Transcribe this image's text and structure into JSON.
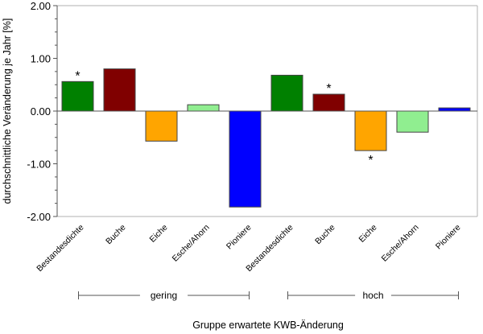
{
  "chart_data": {
    "type": "bar",
    "title": "",
    "xlabel": "Gruppe erwartete KWB-Änderung",
    "ylabel": "durchschnittliche Veränderung je Jahr [%]",
    "ylim": [
      -2.0,
      2.0
    ],
    "y_ticks": [
      2.0,
      1.0,
      0.0,
      -1.0,
      -2.0
    ],
    "y_tick_labels": [
      "2.00",
      "1.00",
      "0.00",
      "-1.00",
      "-2.00"
    ],
    "y_minor_step": 0.25,
    "grid": false,
    "legend": "none",
    "groups": [
      {
        "label": "gering",
        "categories": [
          "Bestandesdichte",
          "Buche",
          "Eiche",
          "Esche/Ahorn",
          "Pioniere"
        ],
        "values": [
          0.56,
          0.8,
          -0.57,
          0.12,
          -1.82
        ],
        "significant": [
          true,
          false,
          false,
          false,
          false
        ]
      },
      {
        "label": "hoch",
        "categories": [
          "Bestandesdichte",
          "Buche",
          "Eiche",
          "Esche/Ahorn",
          "Pioniere"
        ],
        "values": [
          0.68,
          0.32,
          -0.75,
          -0.4,
          0.06
        ],
        "significant": [
          false,
          true,
          true,
          false,
          false
        ]
      }
    ],
    "category_colors": {
      "Bestandesdichte": "#008000",
      "Buche": "#800000",
      "Eiche": "#FFA500",
      "Esche/Ahorn": "#90EE90",
      "Pioniere": "#0000FF"
    },
    "significance_marker": "*"
  }
}
